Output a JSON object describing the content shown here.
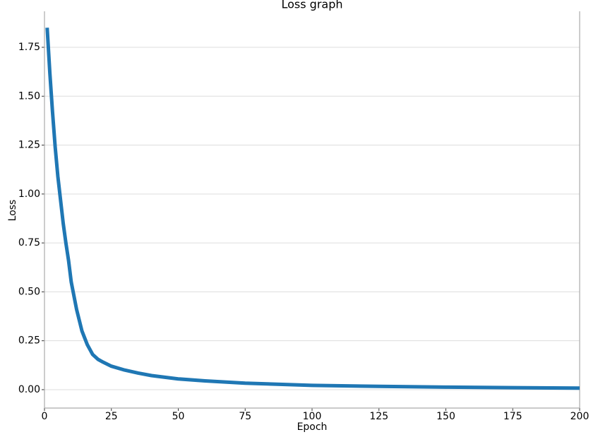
{
  "chart_data": {
    "type": "line",
    "title": "Loss graph",
    "x_label": "Epoch",
    "y_label": "Loss",
    "x": [
      1,
      2,
      3,
      4,
      5,
      6,
      7,
      8,
      9,
      10,
      12,
      14,
      16,
      18,
      20,
      22,
      25,
      30,
      35,
      40,
      50,
      60,
      75,
      100,
      125,
      150,
      175,
      200
    ],
    "series": [
      {
        "color": "#1f77b4",
        "values": [
          1.85,
          1.62,
          1.42,
          1.24,
          1.09,
          0.97,
          0.85,
          0.75,
          0.66,
          0.55,
          0.41,
          0.3,
          0.23,
          0.18,
          0.155,
          0.14,
          0.12,
          0.1,
          0.085,
          0.072,
          0.055,
          0.045,
          0.033,
          0.022,
          0.017,
          0.013,
          0.01,
          0.008
        ]
      }
    ],
    "xlim": [
      0,
      200
    ],
    "ylim": [
      -0.094,
      1.934
    ],
    "xticks": [
      0,
      25,
      50,
      75,
      100,
      125,
      150,
      175,
      200
    ],
    "yticks": [
      {
        "value": 0,
        "label": "0.00"
      },
      {
        "value": 0.25,
        "label": "0.25"
      },
      {
        "value": 0.5,
        "label": "0.50"
      },
      {
        "value": 0.75,
        "label": "0.75"
      },
      {
        "value": 1,
        "label": "1.00"
      },
      {
        "value": 1.25,
        "label": "1.25"
      },
      {
        "value": 1.5,
        "label": "1.50"
      },
      {
        "value": 1.75,
        "label": "1.75"
      }
    ],
    "grid": true
  }
}
